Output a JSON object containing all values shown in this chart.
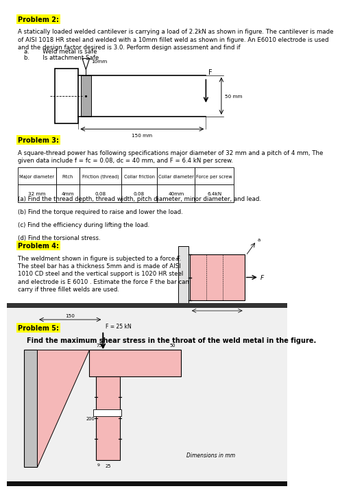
{
  "background_color": "#ffffff",
  "page2_bg": "#f0f0f0",
  "separator_color": "#333333",
  "table_header": [
    "Major diameter",
    "Pitch",
    "Friction (thread)",
    "Collar friction",
    "Collar diameter",
    "Force per screw"
  ],
  "table_row": [
    "32 mm",
    "4mm",
    "0.08",
    "0.08",
    "40mm",
    "6.4kN"
  ],
  "p2_header": "Problem 2:",
  "p2_body": "A statically loaded welded cantilever is carrying a load of 2.2kN as shown in figure. The cantilever is made\nof AISI 1018 HR steel and welded with a 10mm fillet weld as shown in figure. An E6010 electrode is used\nand the design factor desired is 3.0. Perform design assessment and find if",
  "p2_a": "a.       Weld metal is safe",
  "p2_b": "b.       Is attachment Safe",
  "p3_header": "Problem 3:",
  "p3_body": "A square-thread power has following specifications major diameter of 32 mm and a pitch of 4 mm, The\ngiven data include f = fc = 0.08, dc = 40 mm, and F = 6.4 kN per screw.",
  "p3_subs": [
    "(a) Find the thread depth, thread width, pitch diameter, minor diameter, and lead.",
    "(b) Find the torque required to raise and lower the load.",
    "(c) Find the efficiency during lifting the load.",
    "(d) Find the torsional stress."
  ],
  "p4_header": "Problem 4:",
  "p4_body": "The weldment shown in figure is subjected to a force F.\nThe steel bar has a thickness 5mm and is made of AISI\n1010 CD steel and the vertical support is 1020 HR steel\nand electrode is E 6010 . Estimate the force F the bar can\ncarry if three fillet welds are used.",
  "p5_header": "Problem 5:",
  "p5_body": "Find the maximum shear stress in the throat of the weld metal in the figure.",
  "highlight_bg": "#ffff00",
  "pink": "#f5b8b8",
  "grey_light": "#e0e0e0",
  "grey_wall": "#c0c0c0"
}
